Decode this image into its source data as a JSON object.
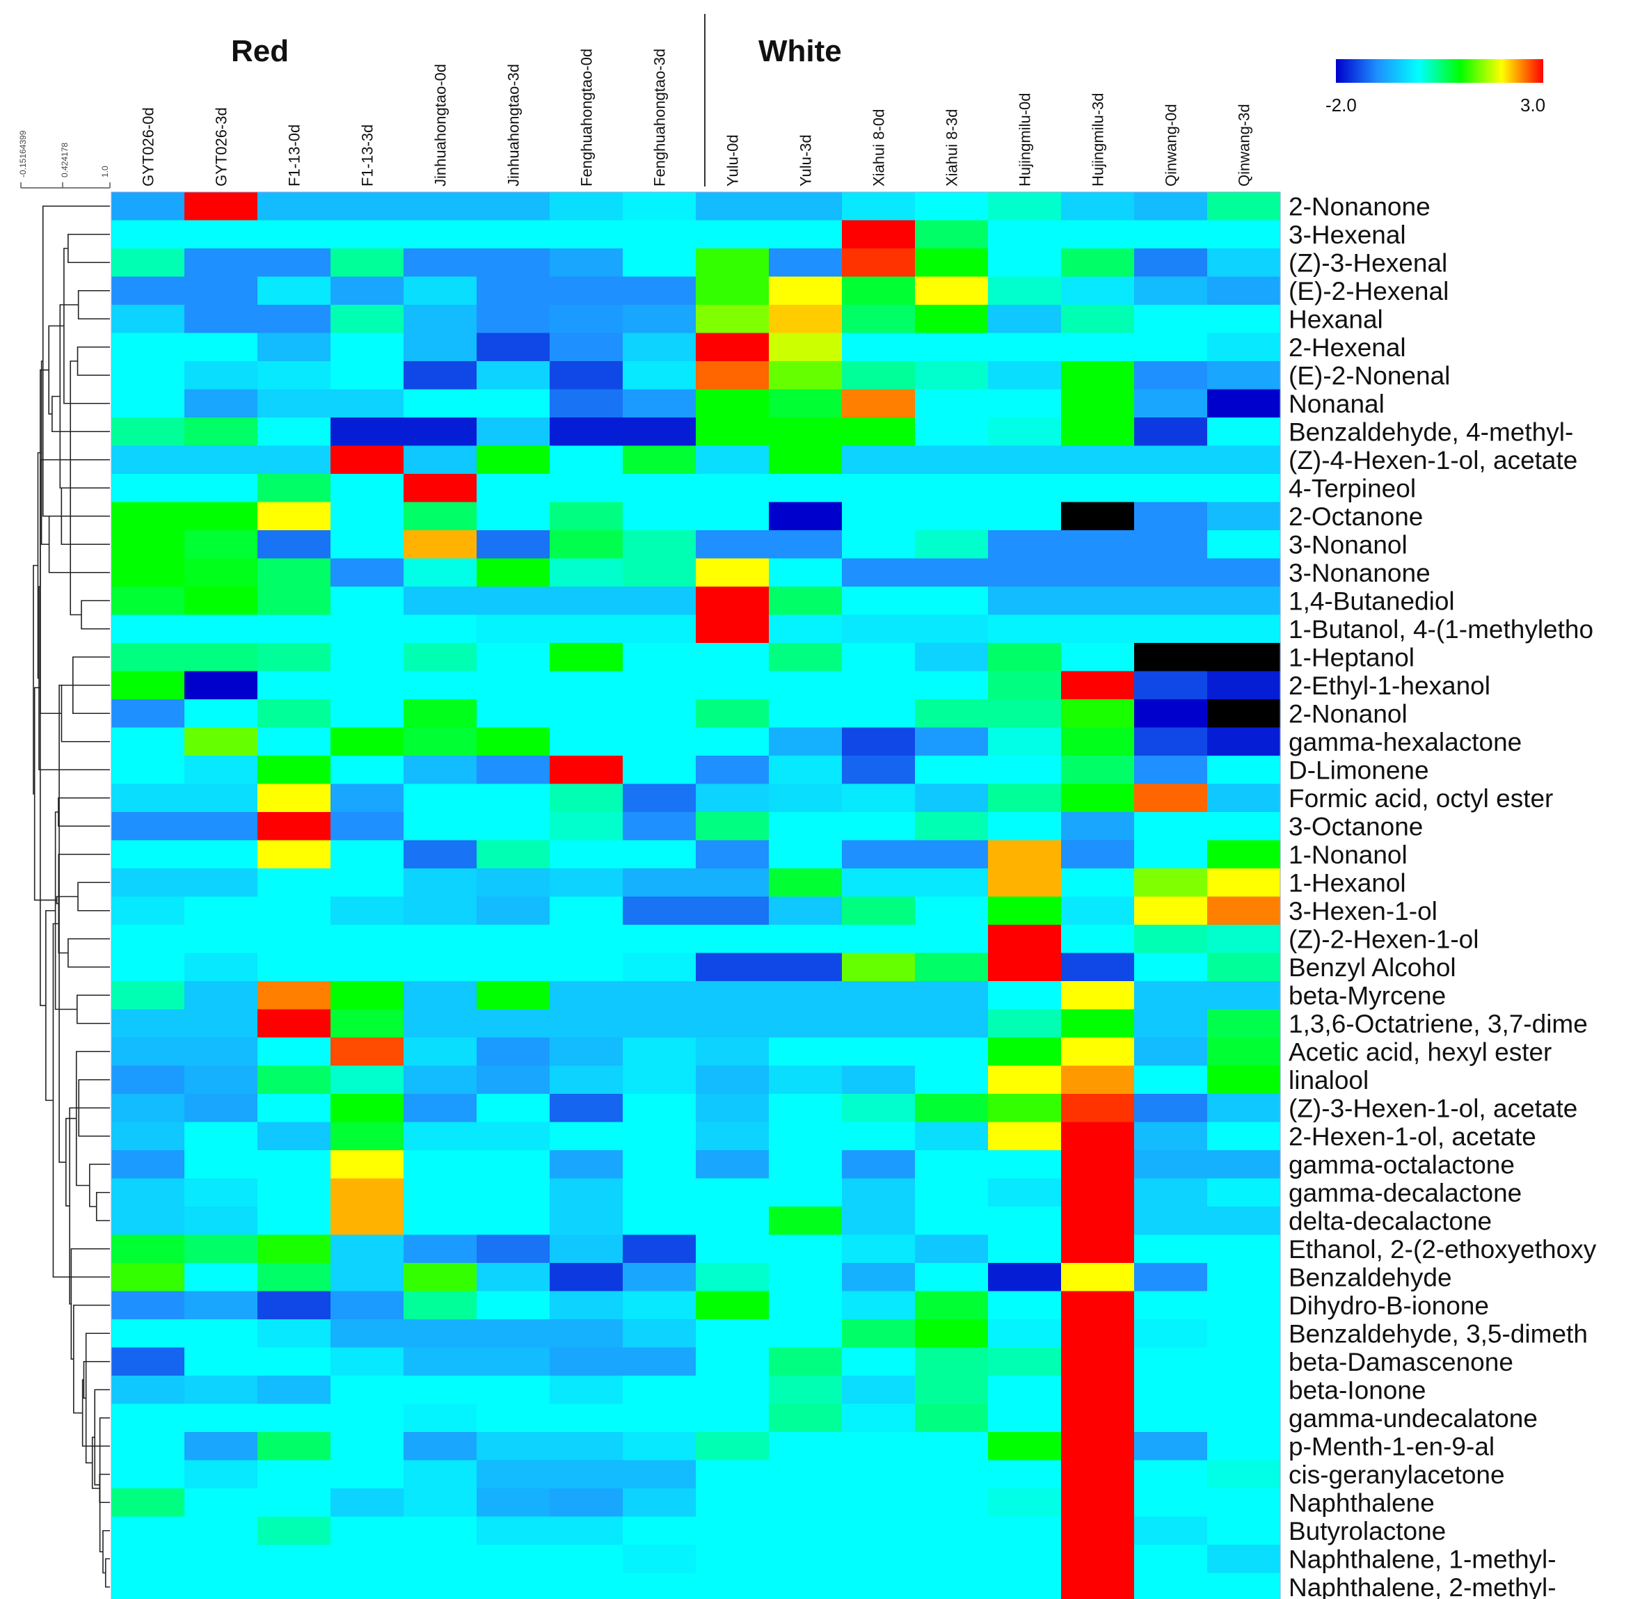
{
  "chart_data": {
    "type": "heatmap",
    "title": "",
    "groups": [
      "Red",
      "White"
    ],
    "columns": [
      "GYT026-0d",
      "GYT026-3d",
      "F1-13-0d",
      "F1-13-3d",
      "Jinhuahongtao-0d",
      "Jinhuahongtao-3d",
      "Fenghuahongtao-0d",
      "Fenghuahongtao-3d",
      "Yulu-0d",
      "Yulu-3d",
      "Xiahui 8-0d",
      "Xiahui 8-3d",
      "Hujingmilu-0d",
      "Hujingmilu-3d",
      "Qinwang-0d",
      "Qinwang-3d"
    ],
    "column_groups": [
      "Red",
      "Red",
      "Red",
      "Red",
      "Red",
      "Red",
      "Red",
      "Red",
      "White",
      "White",
      "White",
      "White",
      "White",
      "White",
      "White",
      "White"
    ],
    "rows": [
      "2-Nonanone",
      "3-Hexenal",
      "(Z)-3-Hexenal",
      "(E)-2-Hexenal",
      "Hexanal",
      "2-Hexenal",
      "(E)-2-Nonenal",
      "Nonanal",
      "Benzaldehyde, 4-methyl-",
      "(Z)-4-Hexen-1-ol, acetate",
      "4-Terpineol",
      "2-Octanone",
      "3-Nonanol",
      "3-Nonanone",
      "1,4-Butanediol",
      "1-Butanol, 4-(1-methyletho",
      "1-Heptanol",
      "2-Ethyl-1-hexanol",
      "2-Nonanol",
      "gamma-hexalactone",
      "D-Limonene",
      "Formic acid, octyl ester",
      "3-Octanone",
      "1-Nonanol",
      "1-Hexanol",
      "3-Hexen-1-ol",
      "(Z)-2-Hexen-1-ol",
      "Benzyl Alcohol",
      "beta-Myrcene",
      "1,3,6-Octatriene, 3,7-dime",
      "Acetic acid, hexyl ester",
      "linalool",
      " (Z)-3-Hexen-1-ol, acetate",
      "2-Hexen-1-ol, acetate",
      "gamma-octalactone",
      "gamma-decalactone",
      "delta-decalactone",
      "Ethanol, 2-(2-ethoxyethoxy",
      "Benzaldehyde",
      "Dihydro-B-ionone",
      "Benzaldehyde, 3,5-dimeth",
      "beta-Damascenone",
      "beta-Ionone",
      "gamma-undecalatone",
      "p-Menth-1-en-9-al",
      "cis-geranylacetone",
      "Naphthalene",
      "Butyrolactone",
      "Naphthalene, 1-methyl-",
      "Naphthalene, 2-methyl-"
    ],
    "color_scale": {
      "min": -2.0,
      "max": 3.0,
      "min_label": "-2.0",
      "max_label": "3.0",
      "stops": [
        {
          "value": -2.0,
          "color": "#0000cc"
        },
        {
          "value": -1.0,
          "color": "#1e90ff"
        },
        {
          "value": 0.0,
          "color": "#00ffff"
        },
        {
          "value": 1.0,
          "color": "#00ff00"
        },
        {
          "value": 2.0,
          "color": "#ffff00"
        },
        {
          "value": 3.0,
          "color": "#ff0000"
        }
      ],
      "out_of_range_color": "#000000"
    },
    "dendrogram_scale_labels": [
      "-0.15164399",
      "0.424178",
      "1.0"
    ],
    "values": [
      [
        -0.8,
        3.0,
        -0.6,
        -0.6,
        -0.6,
        -0.6,
        -0.3,
        -0.1,
        -0.6,
        -0.6,
        -0.2,
        0.0,
        0.2,
        -0.4,
        -0.6,
        0.4
      ],
      [
        0.0,
        0.0,
        0.0,
        0.0,
        0.0,
        0.0,
        0.0,
        0.0,
        0.0,
        0.0,
        3.0,
        0.6,
        0.0,
        0.0,
        0.0,
        0.0
      ],
      [
        0.3,
        -1.0,
        -1.0,
        0.4,
        -1.0,
        -1.0,
        -0.8,
        0.0,
        1.2,
        -1.0,
        2.8,
        1.0,
        0.0,
        0.6,
        -1.1,
        -0.4
      ],
      [
        -1.0,
        -1.0,
        -0.2,
        -0.8,
        -0.3,
        -1.0,
        -1.0,
        -1.0,
        1.2,
        2.0,
        0.8,
        2.0,
        0.2,
        -0.2,
        -0.6,
        -0.8
      ],
      [
        -0.4,
        -1.0,
        -1.0,
        0.3,
        -0.6,
        -1.0,
        -0.9,
        -0.8,
        1.5,
        2.2,
        0.6,
        1.0,
        -0.5,
        0.3,
        0.0,
        0.0
      ],
      [
        0.0,
        0.0,
        -0.6,
        0.0,
        -0.6,
        -1.5,
        -1.0,
        -0.4,
        3.0,
        1.8,
        0.0,
        0.0,
        0.0,
        0.0,
        0.0,
        -0.2
      ],
      [
        0.0,
        -0.3,
        -0.2,
        0.0,
        -1.5,
        -0.4,
        -1.5,
        -0.2,
        2.6,
        1.4,
        0.4,
        0.2,
        -0.3,
        1.0,
        -1.0,
        -0.8
      ],
      [
        0.0,
        -0.8,
        -0.4,
        -0.4,
        0.0,
        0.0,
        -1.2,
        -0.9,
        1.0,
        0.8,
        2.5,
        0.0,
        0.0,
        1.0,
        -0.8,
        -2.0
      ],
      [
        0.4,
        0.6,
        0.0,
        -1.8,
        -1.8,
        -0.5,
        -1.8,
        -1.8,
        1.0,
        1.0,
        1.0,
        0.0,
        0.1,
        1.0,
        -1.6,
        0.0
      ],
      [
        -0.4,
        -0.4,
        -0.4,
        3.0,
        -0.5,
        1.0,
        0.0,
        0.8,
        -0.3,
        1.0,
        -0.4,
        -0.4,
        -0.4,
        -0.4,
        -0.4,
        -0.4
      ],
      [
        0.0,
        0.0,
        0.6,
        0.0,
        3.0,
        0.0,
        0.0,
        0.0,
        0.0,
        0.0,
        0.0,
        0.0,
        0.0,
        0.0,
        0.0,
        0.0
      ],
      [
        1.0,
        1.0,
        2.0,
        0.0,
        0.6,
        0.0,
        0.5,
        0.0,
        0.0,
        -2.0,
        0.0,
        0.0,
        0.0,
        -3.0,
        -1.0,
        -0.6
      ],
      [
        1.0,
        0.8,
        -1.2,
        0.0,
        2.3,
        -1.2,
        0.7,
        0.3,
        -1.0,
        -1.0,
        0.0,
        0.2,
        -1.0,
        -1.0,
        -1.0,
        0.0
      ],
      [
        1.0,
        0.9,
        0.6,
        -1.0,
        0.1,
        1.0,
        0.2,
        0.3,
        2.0,
        0.0,
        -1.0,
        -1.0,
        -1.0,
        -1.0,
        -1.0,
        -1.0
      ],
      [
        0.8,
        1.0,
        0.6,
        0.0,
        -0.5,
        -0.5,
        -0.5,
        -0.5,
        3.0,
        0.6,
        0.0,
        0.0,
        -0.6,
        -0.6,
        -0.6,
        -0.6
      ],
      [
        0.0,
        0.0,
        0.0,
        0.0,
        0.0,
        -0.1,
        -0.1,
        -0.1,
        3.0,
        -0.1,
        -0.2,
        -0.2,
        -0.1,
        -0.1,
        -0.1,
        -0.1
      ],
      [
        0.5,
        0.5,
        0.4,
        0.0,
        0.3,
        0.0,
        1.0,
        0.0,
        0.0,
        0.5,
        0.0,
        -0.4,
        0.6,
        0.0,
        -3.0,
        -3.0
      ],
      [
        1.0,
        -2.0,
        0.0,
        0.0,
        0.0,
        0.0,
        0.0,
        0.0,
        0.0,
        0.0,
        0.0,
        0.0,
        0.5,
        3.0,
        -1.5,
        -1.8
      ],
      [
        -1.0,
        0.0,
        0.4,
        0.0,
        0.9,
        0.0,
        0.0,
        0.0,
        0.5,
        0.0,
        0.0,
        0.4,
        0.4,
        1.1,
        -2.0,
        -3.0
      ],
      [
        0.0,
        1.4,
        0.0,
        1.0,
        0.8,
        1.0,
        0.0,
        0.0,
        0.0,
        -0.7,
        -1.5,
        -0.9,
        0.1,
        0.9,
        -1.5,
        -1.8
      ],
      [
        0.0,
        -0.2,
        1.0,
        0.0,
        -0.6,
        -1.0,
        3.0,
        0.0,
        -1.0,
        -0.2,
        -1.3,
        0.0,
        0.0,
        0.6,
        -1.0,
        0.0
      ],
      [
        -0.3,
        -0.3,
        2.0,
        -0.8,
        0.0,
        0.0,
        0.3,
        -1.2,
        -0.4,
        -0.3,
        -0.2,
        -0.5,
        0.4,
        1.0,
        2.6,
        -0.5
      ],
      [
        -1.0,
        -1.0,
        3.0,
        -1.0,
        0.0,
        0.0,
        0.2,
        -1.0,
        0.5,
        0.0,
        0.0,
        0.3,
        0.0,
        -0.8,
        0.0,
        0.0
      ],
      [
        0.0,
        0.0,
        2.0,
        0.0,
        -1.2,
        0.3,
        0.0,
        0.0,
        -1.0,
        0.0,
        -1.0,
        -1.0,
        2.3,
        -1.0,
        0.0,
        1.0
      ],
      [
        -0.4,
        -0.4,
        0.0,
        0.0,
        -0.4,
        -0.5,
        -0.4,
        -0.7,
        -0.7,
        0.8,
        -0.2,
        -0.2,
        2.3,
        0.0,
        1.5,
        2.0
      ],
      [
        -0.2,
        0.0,
        0.0,
        -0.3,
        -0.4,
        -0.6,
        0.0,
        -1.2,
        -1.2,
        -0.5,
        0.5,
        0.0,
        1.0,
        -0.2,
        2.0,
        2.5
      ],
      [
        0.0,
        0.0,
        0.0,
        0.0,
        0.0,
        0.0,
        0.0,
        0.0,
        0.0,
        0.0,
        0.0,
        0.0,
        3.0,
        0.0,
        0.3,
        0.2
      ],
      [
        0.0,
        -0.2,
        0.0,
        0.0,
        0.0,
        0.0,
        0.0,
        -0.1,
        -1.5,
        -1.5,
        1.4,
        0.6,
        3.0,
        -1.5,
        0.0,
        0.4
      ],
      [
        0.3,
        -0.5,
        2.5,
        1.0,
        -0.5,
        1.0,
        -0.5,
        -0.5,
        -0.5,
        -0.5,
        -0.5,
        -0.5,
        0.0,
        2.0,
        -0.5,
        -0.5
      ],
      [
        -0.5,
        -0.5,
        3.0,
        0.8,
        -0.5,
        -0.5,
        -0.5,
        -0.5,
        -0.5,
        -0.5,
        -0.5,
        -0.5,
        0.3,
        1.0,
        -0.5,
        0.7
      ],
      [
        -0.6,
        -0.6,
        0.0,
        2.7,
        -0.3,
        -0.9,
        -0.6,
        -0.2,
        -0.4,
        0.0,
        0.0,
        0.0,
        1.0,
        2.0,
        -0.6,
        0.8
      ],
      [
        -0.9,
        -0.7,
        0.6,
        0.2,
        -0.6,
        -0.8,
        -0.4,
        -0.2,
        -0.6,
        -0.3,
        -0.5,
        0.0,
        2.0,
        2.4,
        0.0,
        1.0
      ],
      [
        -0.6,
        -0.8,
        0.0,
        1.0,
        -0.9,
        0.0,
        -1.3,
        0.0,
        -0.5,
        0.0,
        0.2,
        0.8,
        1.2,
        2.8,
        -1.1,
        -0.5
      ],
      [
        -0.5,
        0.0,
        -0.5,
        0.8,
        -0.2,
        -0.2,
        0.0,
        0.0,
        -0.4,
        0.0,
        0.0,
        -0.3,
        2.0,
        3.0,
        -0.6,
        0.0
      ],
      [
        -0.9,
        0.0,
        0.0,
        2.0,
        0.0,
        0.0,
        -0.8,
        0.0,
        -0.8,
        0.0,
        -0.9,
        0.0,
        0.0,
        3.0,
        -0.7,
        -0.7
      ],
      [
        -0.4,
        -0.2,
        0.0,
        2.3,
        0.0,
        0.0,
        -0.4,
        0.0,
        0.0,
        0.0,
        -0.4,
        0.0,
        -0.2,
        3.0,
        -0.4,
        -0.1
      ],
      [
        -0.4,
        -0.3,
        0.0,
        2.3,
        0.0,
        0.0,
        -0.4,
        0.0,
        0.0,
        0.9,
        -0.4,
        0.0,
        0.0,
        3.0,
        -0.4,
        -0.4
      ],
      [
        0.8,
        0.6,
        1.1,
        -0.4,
        -0.9,
        -1.2,
        -0.5,
        -1.5,
        0.0,
        0.0,
        -0.2,
        -0.5,
        0.0,
        3.0,
        0.0,
        0.0
      ],
      [
        1.2,
        0.0,
        0.6,
        -0.4,
        1.2,
        -0.4,
        -1.6,
        -0.8,
        0.2,
        0.0,
        -0.7,
        0.0,
        -1.8,
        2.0,
        -1.0,
        0.0
      ],
      [
        -1.0,
        -0.8,
        -1.5,
        -0.9,
        0.4,
        0.0,
        -0.4,
        -0.2,
        1.0,
        0.0,
        -0.2,
        0.8,
        0.0,
        3.0,
        0.0,
        0.0
      ],
      [
        0.0,
        0.0,
        -0.2,
        -0.7,
        -0.7,
        -0.7,
        -0.7,
        -0.4,
        0.0,
        0.0,
        0.6,
        1.0,
        -0.1,
        3.0,
        -0.1,
        0.0
      ],
      [
        -1.3,
        0.0,
        0.0,
        -0.2,
        -0.6,
        -0.6,
        -0.8,
        -0.8,
        0.0,
        0.5,
        0.0,
        0.4,
        0.3,
        3.0,
        0.0,
        0.0
      ],
      [
        -0.5,
        -0.4,
        -0.6,
        0.0,
        0.0,
        0.0,
        -0.2,
        0.0,
        0.0,
        0.3,
        -0.3,
        0.4,
        0.0,
        3.0,
        0.0,
        0.0
      ],
      [
        0.0,
        0.0,
        0.0,
        0.0,
        -0.1,
        0.0,
        0.0,
        0.0,
        0.0,
        0.4,
        -0.1,
        0.5,
        0.0,
        3.0,
        0.0,
        0.0
      ],
      [
        0.0,
        -0.8,
        0.6,
        0.0,
        -0.8,
        -0.4,
        -0.4,
        -0.2,
        0.3,
        0.0,
        0.0,
        0.0,
        1.0,
        3.0,
        -0.8,
        0.0
      ],
      [
        0.0,
        -0.2,
        0.0,
        0.0,
        -0.2,
        -0.6,
        -0.6,
        -0.6,
        0.0,
        0.0,
        0.0,
        0.0,
        0.0,
        3.0,
        0.0,
        0.1
      ],
      [
        0.5,
        0.0,
        0.0,
        -0.4,
        -0.2,
        -0.7,
        -0.8,
        -0.4,
        0.0,
        0.0,
        0.0,
        0.0,
        0.1,
        3.0,
        0.0,
        0.0
      ],
      [
        0.0,
        0.0,
        0.3,
        0.0,
        0.0,
        -0.2,
        -0.2,
        0.0,
        0.0,
        0.0,
        0.0,
        0.0,
        0.0,
        3.0,
        -0.2,
        0.0
      ],
      [
        0.0,
        0.0,
        0.0,
        0.0,
        0.0,
        0.0,
        0.0,
        -0.1,
        0.0,
        0.0,
        0.0,
        0.0,
        0.0,
        3.0,
        0.0,
        -0.3
      ],
      [
        0.0,
        0.0,
        0.0,
        0.0,
        0.0,
        0.0,
        0.0,
        0.0,
        0.0,
        0.0,
        0.0,
        0.0,
        0.0,
        3.0,
        0.0,
        0.0
      ]
    ]
  }
}
